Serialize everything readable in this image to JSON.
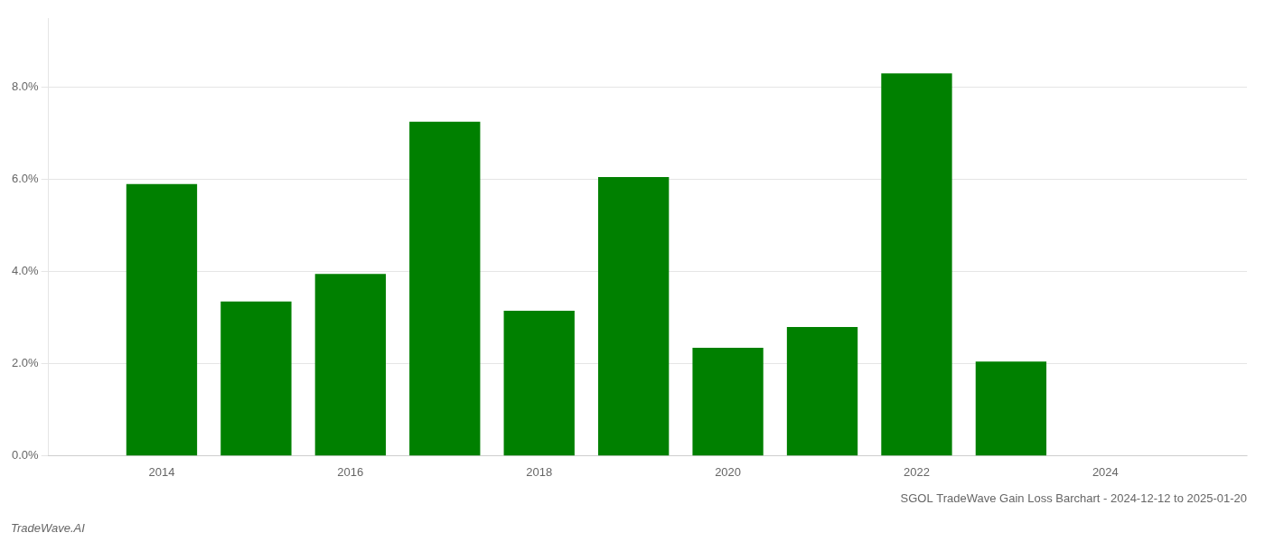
{
  "chart_data": {
    "type": "bar",
    "title": "SGOL TradeWave Gain Loss Barchart - 2024-12-12 to 2025-01-20",
    "annotations": [
      "TradeWave.AI"
    ],
    "x": [
      2014,
      2015,
      2016,
      2017,
      2018,
      2019,
      2020,
      2021,
      2022,
      2023
    ],
    "values": [
      0.059,
      0.0335,
      0.0395,
      0.0725,
      0.0315,
      0.0605,
      0.0235,
      0.028,
      0.083,
      0.0205
    ],
    "color": "#008000",
    "xlim": [
      2012.8,
      2025.5
    ],
    "xticks": [
      2014,
      2016,
      2018,
      2020,
      2022,
      2024
    ],
    "ylim": [
      0,
      0.095
    ],
    "yticks": [
      {
        "value": 0.0,
        "label": "0.0%"
      },
      {
        "value": 0.02,
        "label": "2.0%"
      },
      {
        "value": 0.04,
        "label": "4.0%"
      },
      {
        "value": 0.06,
        "label": "6.0%"
      },
      {
        "value": 0.08,
        "label": "8.0%"
      }
    ],
    "grid": true
  }
}
